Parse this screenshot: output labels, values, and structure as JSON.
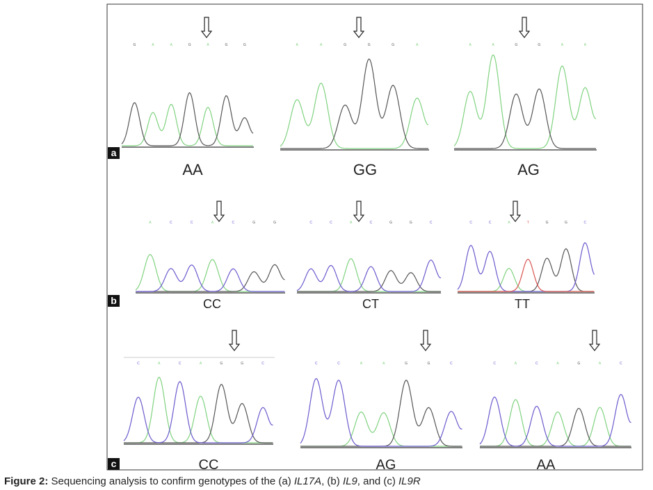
{
  "figure": {
    "panels": [
      {
        "label": "a",
        "genotypes": [
          "AA",
          "GG",
          "AG"
        ],
        "bases": [
          [
            "G",
            "A",
            "A",
            "G",
            "A",
            "G",
            "G"
          ],
          [
            "A",
            "A",
            "G",
            "G",
            "G",
            "A"
          ],
          [
            "A",
            "A",
            "G",
            "G",
            "A",
            "A"
          ]
        ]
      },
      {
        "label": "b",
        "genotypes": [
          "CC",
          "CT",
          "TT"
        ],
        "bases": [
          [
            "A",
            "C",
            "C",
            "A",
            "C",
            "G",
            "G"
          ],
          [
            "C",
            "C",
            "A",
            "C",
            "G",
            "G",
            "C"
          ],
          [
            "C",
            "C",
            "A",
            "T",
            "G",
            "G",
            "C"
          ]
        ]
      },
      {
        "label": "c",
        "genotypes": [
          "CC",
          "AG",
          "AA"
        ],
        "bases": [
          [
            "C",
            "A",
            "C",
            "A",
            "G",
            "G",
            "C"
          ],
          [
            "C",
            "C",
            "A",
            "A",
            "G",
            "G",
            "C"
          ],
          [
            "C",
            "A",
            "C",
            "A",
            "G",
            "A",
            "C"
          ]
        ]
      }
    ],
    "caption": {
      "label": "Figure 2:",
      "parts": [
        " Sequencing analysis to confirm genotypes of the (a) ",
        "IL17A",
        ", (b) ",
        "IL9",
        ", and (c) ",
        "IL9R"
      ]
    }
  }
}
